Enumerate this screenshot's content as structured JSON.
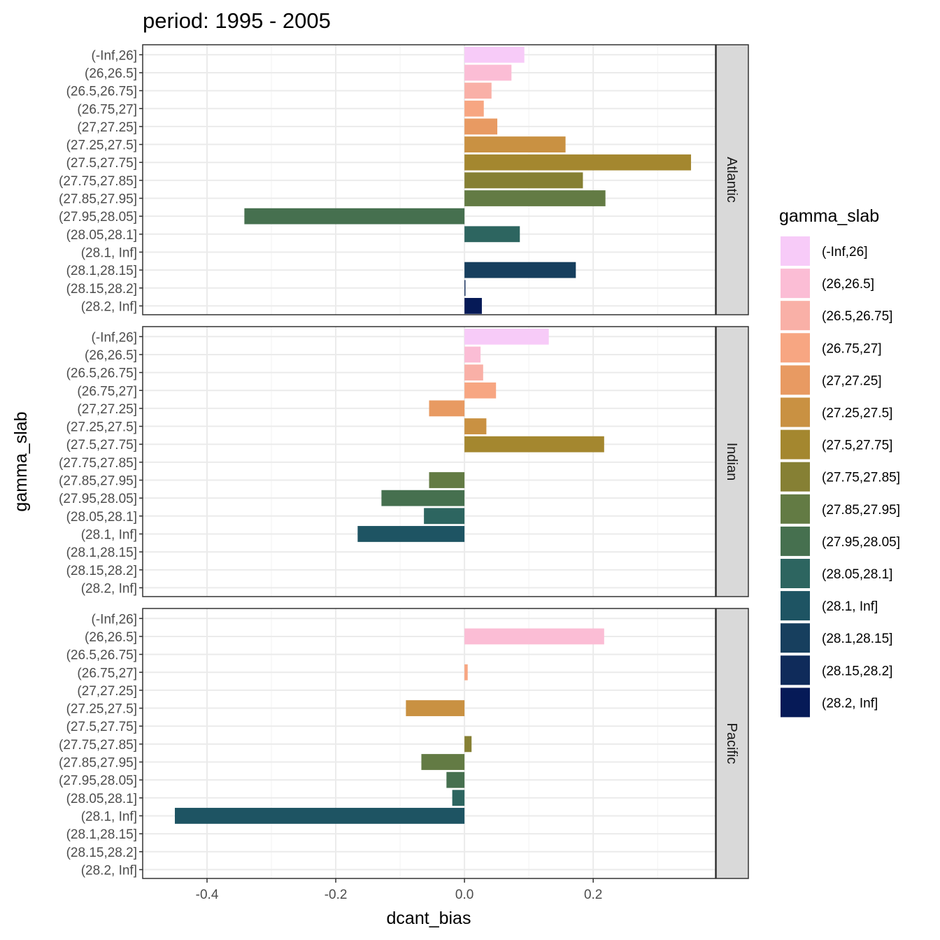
{
  "chart_data": {
    "type": "bar",
    "orientation": "horizontal",
    "title": "period: 1995 - 2005",
    "xlabel": "dcant_bias",
    "ylabel": "gamma_slab",
    "xlim": [
      -0.5,
      0.39
    ],
    "x_ticks": [
      -0.4,
      -0.2,
      0.0,
      0.2
    ],
    "x_tick_labels": [
      "-0.4",
      "-0.2",
      "0.0",
      "0.2"
    ],
    "x_minor_ticks": [
      -0.3,
      -0.1,
      0.1,
      0.3
    ],
    "grid": true,
    "legend": {
      "title": "gamma_slab",
      "position": "right"
    },
    "categories": [
      "(-Inf,26]",
      "(26,26.5]",
      "(26.5,26.75]",
      "(26.75,27]",
      "(27,27.25]",
      "(27.25,27.5]",
      "(27.5,27.75]",
      "(27.75,27.85]",
      "(27.85,27.95]",
      "(27.95,28.05]",
      "(28.05,28.1]",
      "(28.1, Inf]",
      "(28.1,28.15]",
      "(28.15,28.2]",
      "(28.2, Inf]"
    ],
    "colors": [
      "#f7cbf8",
      "#fbbdd5",
      "#f9b0a7",
      "#f7a682",
      "#e89a62",
      "#c99142",
      "#a4872f",
      "#868034",
      "#637b44",
      "#46704f",
      "#2d6560",
      "#1e5463",
      "#173f5e",
      "#0f2b5a",
      "#061a57"
    ],
    "panels": [
      {
        "name": "Atlantic",
        "values": [
          0.093,
          0.073,
          0.042,
          0.03,
          0.051,
          0.157,
          0.352,
          0.184,
          0.219,
          -0.342,
          0.086,
          null,
          0.173,
          0.0015,
          0.027
        ]
      },
      {
        "name": "Indian",
        "values": [
          0.131,
          0.025,
          0.029,
          0.049,
          -0.055,
          0.034,
          0.217,
          null,
          -0.055,
          -0.129,
          -0.063,
          -0.166,
          null,
          null,
          null
        ]
      },
      {
        "name": "Pacific",
        "values": [
          null,
          0.217,
          null,
          0.005,
          null,
          -0.091,
          null,
          0.011,
          -0.067,
          -0.028,
          -0.019,
          -0.45,
          null,
          null,
          null
        ]
      }
    ]
  }
}
